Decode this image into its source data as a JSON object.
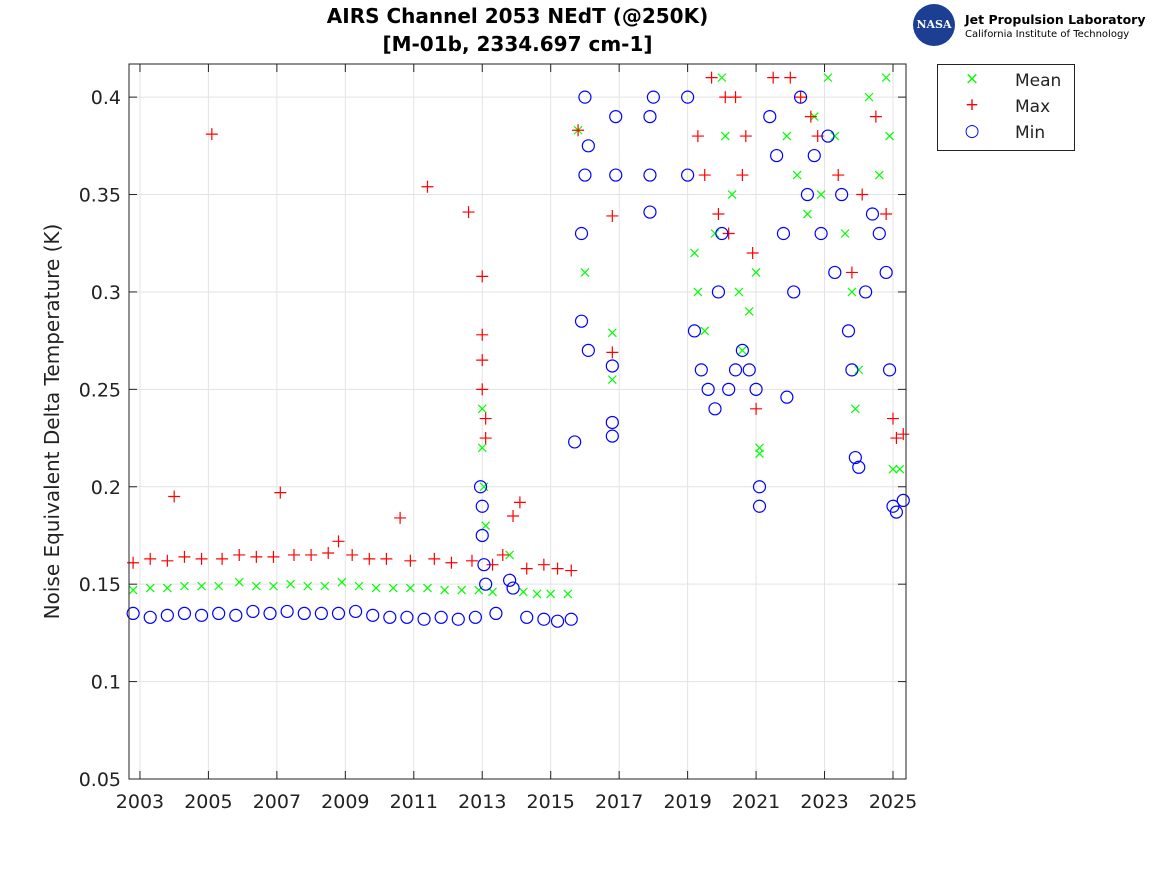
{
  "header": {
    "logo_text": [
      "NASA",
      "Jet Propulsion Laboratory",
      "California Institute of Technology"
    ]
  },
  "chart_data": {
    "type": "scatter",
    "title": "AIRS Channel 2053 NEdT (@250K)",
    "subtitle": "[M-01b, 2334.697 cm-1]",
    "xlabel": "",
    "ylabel": "Noise Equivalent Delta Temperature (K)",
    "xlim": [
      2002.68,
      2025.38
    ],
    "ylim": [
      0.05,
      0.417
    ],
    "xticks": [
      2003,
      2005,
      2007,
      2009,
      2011,
      2013,
      2015,
      2017,
      2019,
      2021,
      2023,
      2025
    ],
    "yticks": [
      0.05,
      0.1,
      0.15,
      0.2,
      0.25,
      0.3,
      0.35,
      0.4
    ],
    "ytick_labels": [
      "0.05",
      "0.1",
      "0.15",
      "0.2",
      "0.25",
      "0.3",
      "0.35",
      "0.4"
    ],
    "grid": true,
    "legend_position": "outside-top-right",
    "series": [
      {
        "name": "Mean",
        "marker": "x",
        "color": "#00ff00",
        "points": [
          [
            2002.8,
            0.147
          ],
          [
            2003.3,
            0.148
          ],
          [
            2003.8,
            0.148
          ],
          [
            2004.3,
            0.149
          ],
          [
            2004.8,
            0.149
          ],
          [
            2005.3,
            0.149
          ],
          [
            2005.9,
            0.151
          ],
          [
            2006.4,
            0.149
          ],
          [
            2006.9,
            0.149
          ],
          [
            2007.4,
            0.15
          ],
          [
            2007.9,
            0.149
          ],
          [
            2008.4,
            0.149
          ],
          [
            2008.9,
            0.151
          ],
          [
            2009.4,
            0.149
          ],
          [
            2009.9,
            0.148
          ],
          [
            2010.4,
            0.148
          ],
          [
            2010.9,
            0.148
          ],
          [
            2011.4,
            0.148
          ],
          [
            2011.9,
            0.147
          ],
          [
            2012.4,
            0.147
          ],
          [
            2012.9,
            0.147
          ],
          [
            2013.0,
            0.24
          ],
          [
            2013.0,
            0.22
          ],
          [
            2013.05,
            0.2
          ],
          [
            2013.1,
            0.18
          ],
          [
            2013.3,
            0.146
          ],
          [
            2013.8,
            0.165
          ],
          [
            2014.2,
            0.146
          ],
          [
            2014.6,
            0.145
          ],
          [
            2015.0,
            0.145
          ],
          [
            2015.5,
            0.145
          ],
          [
            2015.8,
            0.383
          ],
          [
            2016.0,
            0.31
          ],
          [
            2016.8,
            0.279
          ],
          [
            2016.8,
            0.255
          ],
          [
            2019.2,
            0.32
          ],
          [
            2019.3,
            0.3
          ],
          [
            2019.5,
            0.28
          ],
          [
            2019.8,
            0.33
          ],
          [
            2020.0,
            0.41
          ],
          [
            2020.1,
            0.38
          ],
          [
            2020.3,
            0.35
          ],
          [
            2020.5,
            0.3
          ],
          [
            2020.6,
            0.27
          ],
          [
            2020.8,
            0.29
          ],
          [
            2021.0,
            0.31
          ],
          [
            2021.1,
            0.22
          ],
          [
            2021.1,
            0.217
          ],
          [
            2021.9,
            0.38
          ],
          [
            2022.2,
            0.36
          ],
          [
            2022.5,
            0.34
          ],
          [
            2022.7,
            0.39
          ],
          [
            2022.9,
            0.35
          ],
          [
            2023.1,
            0.41
          ],
          [
            2023.3,
            0.38
          ],
          [
            2023.6,
            0.33
          ],
          [
            2023.8,
            0.3
          ],
          [
            2023.9,
            0.24
          ],
          [
            2024.0,
            0.26
          ],
          [
            2024.3,
            0.4
          ],
          [
            2024.6,
            0.36
          ],
          [
            2024.8,
            0.41
          ],
          [
            2024.9,
            0.38
          ],
          [
            2025.0,
            0.209
          ],
          [
            2025.2,
            0.209
          ]
        ]
      },
      {
        "name": "Max",
        "marker": "+",
        "color": "#ff0000",
        "points": [
          [
            2002.8,
            0.161
          ],
          [
            2003.3,
            0.163
          ],
          [
            2003.8,
            0.162
          ],
          [
            2004.0,
            0.195
          ],
          [
            2004.3,
            0.164
          ],
          [
            2004.8,
            0.163
          ],
          [
            2005.1,
            0.381
          ],
          [
            2005.4,
            0.163
          ],
          [
            2005.9,
            0.165
          ],
          [
            2006.4,
            0.164
          ],
          [
            2006.9,
            0.164
          ],
          [
            2007.1,
            0.197
          ],
          [
            2007.5,
            0.165
          ],
          [
            2008.0,
            0.165
          ],
          [
            2008.5,
            0.166
          ],
          [
            2008.8,
            0.172
          ],
          [
            2009.2,
            0.165
          ],
          [
            2009.7,
            0.163
          ],
          [
            2010.2,
            0.163
          ],
          [
            2010.6,
            0.184
          ],
          [
            2010.9,
            0.162
          ],
          [
            2011.4,
            0.354
          ],
          [
            2011.6,
            0.163
          ],
          [
            2012.1,
            0.161
          ],
          [
            2012.6,
            0.341
          ],
          [
            2012.7,
            0.162
          ],
          [
            2013.0,
            0.308
          ],
          [
            2013.0,
            0.278
          ],
          [
            2013.0,
            0.265
          ],
          [
            2013.0,
            0.25
          ],
          [
            2013.1,
            0.235
          ],
          [
            2013.1,
            0.225
          ],
          [
            2013.3,
            0.16
          ],
          [
            2013.6,
            0.165
          ],
          [
            2013.9,
            0.185
          ],
          [
            2014.1,
            0.192
          ],
          [
            2014.3,
            0.158
          ],
          [
            2014.8,
            0.16
          ],
          [
            2015.2,
            0.158
          ],
          [
            2015.6,
            0.157
          ],
          [
            2015.8,
            0.383
          ],
          [
            2016.8,
            0.339
          ],
          [
            2016.8,
            0.269
          ],
          [
            2019.3,
            0.38
          ],
          [
            2019.5,
            0.36
          ],
          [
            2019.7,
            0.41
          ],
          [
            2019.9,
            0.34
          ],
          [
            2020.1,
            0.4
          ],
          [
            2020.2,
            0.33
          ],
          [
            2020.4,
            0.4
          ],
          [
            2020.6,
            0.36
          ],
          [
            2020.7,
            0.38
          ],
          [
            2020.9,
            0.32
          ],
          [
            2021.0,
            0.24
          ],
          [
            2021.5,
            0.41
          ],
          [
            2022.0,
            0.41
          ],
          [
            2022.3,
            0.4
          ],
          [
            2022.6,
            0.39
          ],
          [
            2022.8,
            0.38
          ],
          [
            2023.4,
            0.36
          ],
          [
            2023.8,
            0.31
          ],
          [
            2024.1,
            0.35
          ],
          [
            2024.5,
            0.39
          ],
          [
            2024.8,
            0.34
          ],
          [
            2025.0,
            0.235
          ],
          [
            2025.1,
            0.225
          ],
          [
            2025.3,
            0.227
          ]
        ]
      },
      {
        "name": "Min",
        "marker": "o",
        "color": "#0000ff",
        "points": [
          [
            2002.8,
            0.135
          ],
          [
            2003.3,
            0.133
          ],
          [
            2003.8,
            0.134
          ],
          [
            2004.3,
            0.135
          ],
          [
            2004.8,
            0.134
          ],
          [
            2005.3,
            0.135
          ],
          [
            2005.8,
            0.134
          ],
          [
            2006.3,
            0.136
          ],
          [
            2006.8,
            0.135
          ],
          [
            2007.3,
            0.136
          ],
          [
            2007.8,
            0.135
          ],
          [
            2008.3,
            0.135
          ],
          [
            2008.8,
            0.135
          ],
          [
            2009.3,
            0.136
          ],
          [
            2009.8,
            0.134
          ],
          [
            2010.3,
            0.133
          ],
          [
            2010.8,
            0.133
          ],
          [
            2011.3,
            0.132
          ],
          [
            2011.8,
            0.133
          ],
          [
            2012.3,
            0.132
          ],
          [
            2012.8,
            0.133
          ],
          [
            2012.95,
            0.2
          ],
          [
            2013.0,
            0.19
          ],
          [
            2013.0,
            0.175
          ],
          [
            2013.05,
            0.16
          ],
          [
            2013.1,
            0.15
          ],
          [
            2013.4,
            0.135
          ],
          [
            2013.8,
            0.152
          ],
          [
            2013.9,
            0.148
          ],
          [
            2014.3,
            0.133
          ],
          [
            2014.8,
            0.132
          ],
          [
            2015.2,
            0.131
          ],
          [
            2015.6,
            0.132
          ],
          [
            2015.7,
            0.223
          ],
          [
            2015.9,
            0.285
          ],
          [
            2015.9,
            0.33
          ],
          [
            2016.0,
            0.36
          ],
          [
            2016.0,
            0.4
          ],
          [
            2016.1,
            0.375
          ],
          [
            2016.1,
            0.27
          ],
          [
            2016.8,
            0.226
          ],
          [
            2016.8,
            0.233
          ],
          [
            2016.8,
            0.262
          ],
          [
            2016.9,
            0.36
          ],
          [
            2016.9,
            0.39
          ],
          [
            2017.9,
            0.341
          ],
          [
            2017.9,
            0.36
          ],
          [
            2017.9,
            0.39
          ],
          [
            2018.0,
            0.4
          ],
          [
            2019.0,
            0.36
          ],
          [
            2019.0,
            0.4
          ],
          [
            2019.2,
            0.28
          ],
          [
            2019.4,
            0.26
          ],
          [
            2019.6,
            0.25
          ],
          [
            2019.8,
            0.24
          ],
          [
            2019.9,
            0.3
          ],
          [
            2020.0,
            0.33
          ],
          [
            2020.2,
            0.25
          ],
          [
            2020.4,
            0.26
          ],
          [
            2020.6,
            0.27
          ],
          [
            2020.8,
            0.26
          ],
          [
            2021.0,
            0.25
          ],
          [
            2021.1,
            0.2
          ],
          [
            2021.1,
            0.19
          ],
          [
            2021.4,
            0.39
          ],
          [
            2021.6,
            0.37
          ],
          [
            2021.8,
            0.33
          ],
          [
            2021.9,
            0.246
          ],
          [
            2022.1,
            0.3
          ],
          [
            2022.3,
            0.4
          ],
          [
            2022.5,
            0.35
          ],
          [
            2022.7,
            0.37
          ],
          [
            2022.9,
            0.33
          ],
          [
            2023.1,
            0.38
          ],
          [
            2023.3,
            0.31
          ],
          [
            2023.5,
            0.35
          ],
          [
            2023.7,
            0.28
          ],
          [
            2023.8,
            0.26
          ],
          [
            2023.9,
            0.215
          ],
          [
            2024.0,
            0.21
          ],
          [
            2024.2,
            0.3
          ],
          [
            2024.4,
            0.34
          ],
          [
            2024.6,
            0.33
          ],
          [
            2024.8,
            0.31
          ],
          [
            2024.9,
            0.26
          ],
          [
            2025.0,
            0.19
          ],
          [
            2025.1,
            0.187
          ],
          [
            2025.3,
            0.193
          ]
        ]
      }
    ]
  }
}
